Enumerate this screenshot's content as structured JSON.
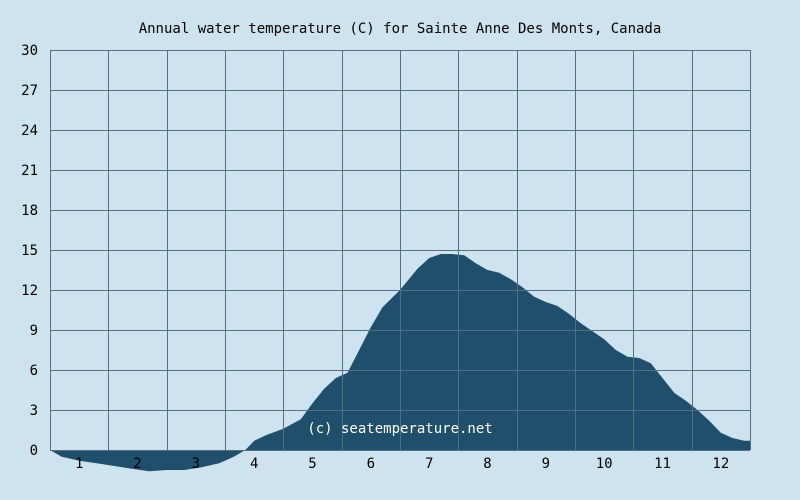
{
  "chart_data": {
    "type": "area",
    "title": "Annual water temperature (C) for Sainte Anne Des Monts, Canada",
    "xlabel": "",
    "ylabel": "",
    "watermark": "(c) seatemperature.net",
    "ylim": [
      -1.6,
      30
    ],
    "xlim": [
      0.5,
      12.5
    ],
    "y_ticks": [
      0,
      3,
      6,
      9,
      12,
      15,
      18,
      21,
      24,
      27,
      30
    ],
    "x_ticks": [
      1,
      2,
      3,
      4,
      5,
      6,
      7,
      8,
      9,
      10,
      11,
      12
    ],
    "grid": true,
    "colors": {
      "background": "#cde3ef",
      "fill": "#1f4f6a",
      "grid": "#536f82",
      "text": "#000000",
      "watermark": "#ffffff"
    },
    "x": [
      0.5,
      0.7,
      1.0,
      1.3,
      1.6,
      1.9,
      2.2,
      2.5,
      2.8,
      3.1,
      3.4,
      3.65,
      3.85,
      4.0,
      4.2,
      4.5,
      4.8,
      5.0,
      5.2,
      5.4,
      5.6,
      5.8,
      6.0,
      6.2,
      6.5,
      6.8,
      7.0,
      7.2,
      7.4,
      7.6,
      7.8,
      8.0,
      8.2,
      8.4,
      8.6,
      8.8,
      9.0,
      9.2,
      9.4,
      9.6,
      9.8,
      10.0,
      10.2,
      10.4,
      10.6,
      10.8,
      11.0,
      11.2,
      11.4,
      11.6,
      11.8,
      12.0,
      12.2,
      12.4,
      12.5
    ],
    "y": [
      0.0,
      -0.5,
      -0.8,
      -1.0,
      -1.2,
      -1.4,
      -1.6,
      -1.5,
      -1.5,
      -1.3,
      -1.0,
      -0.5,
      0.0,
      0.7,
      1.1,
      1.6,
      2.3,
      3.5,
      4.6,
      5.4,
      5.8,
      7.5,
      9.2,
      10.7,
      12.0,
      13.6,
      14.4,
      14.7,
      14.7,
      14.6,
      14.0,
      13.5,
      13.3,
      12.8,
      12.2,
      11.5,
      11.1,
      10.8,
      10.2,
      9.5,
      8.9,
      8.3,
      7.5,
      7.0,
      6.9,
      6.5,
      5.4,
      4.3,
      3.7,
      3.0,
      2.2,
      1.3,
      0.9,
      0.7,
      0.7
    ]
  }
}
